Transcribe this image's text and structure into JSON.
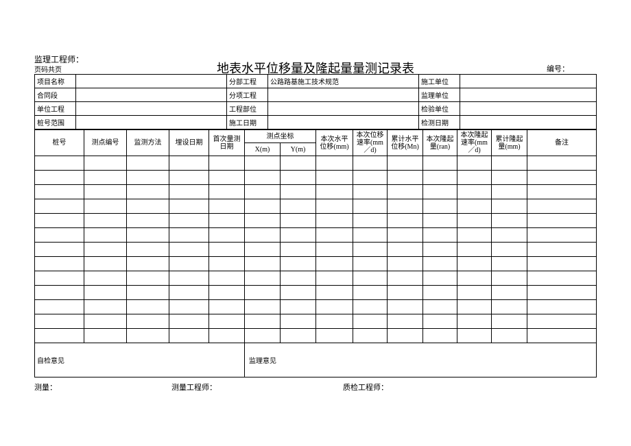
{
  "header": {
    "supervisor_label": "监理工程师：",
    "page_code": "页码共页",
    "title": "地表水平位移量及隆起量量测记录表",
    "doc_no_label": "编号："
  },
  "meta": {
    "row1": {
      "c1": "项目名称",
      "c2": "分部工程",
      "c3": "公路路基施工技术规范",
      "c4": "施工单位"
    },
    "row2": {
      "c1": "合同段",
      "c2": "分项工程",
      "c4": "监理单位"
    },
    "row3": {
      "c1": "单位工程",
      "c2": "工程部位",
      "c4": "检验单位"
    },
    "row4": {
      "c1": "桩号范围",
      "c2": "施工日期",
      "c4": "检测日期"
    }
  },
  "columns": {
    "c1": "桩号",
    "c2": "测点编号",
    "c3": "监测方法",
    "c4": "埋设日期",
    "c5": "首次量测日期",
    "c6_group": "测点坐标",
    "c6a": "X(m)",
    "c6b": "Y(m)",
    "c7": "本次水平位移(mm)",
    "c8": "本次位移速率(mm／d)",
    "c9": "累计水平位移(Mn)",
    "c10": "本次隆起量(ran)",
    "c11": "本次隆起速率(mm／d)",
    "c12": "累计隆起量(mm)",
    "c13": "备注"
  },
  "opinions": {
    "self": "自检意见",
    "supervision": "监理意见"
  },
  "footer": {
    "f1": "测量：",
    "f2": "测量工程师：",
    "f3": "质检工程师："
  },
  "style": {
    "border_color": "#000000",
    "background": "#ffffff",
    "font_family": "SimSun",
    "title_fontsize": 18,
    "body_fontsize": 10,
    "data_row_count": 13
  }
}
